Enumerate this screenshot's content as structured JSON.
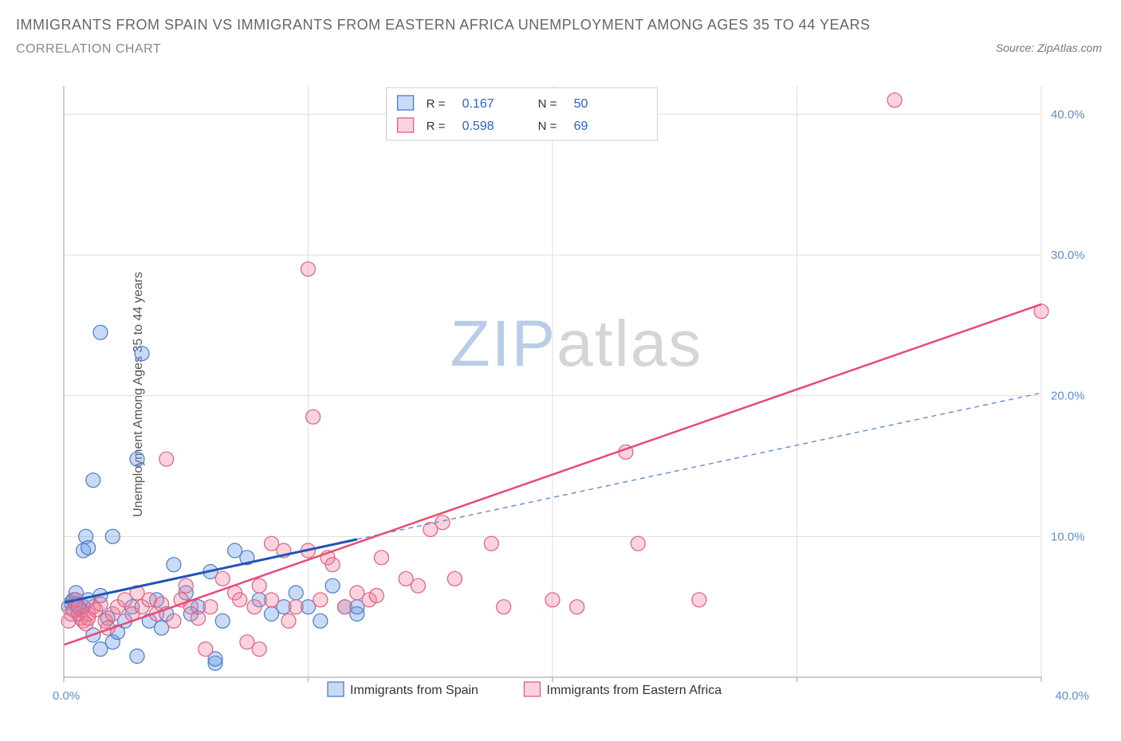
{
  "title": "IMMIGRANTS FROM SPAIN VS IMMIGRANTS FROM EASTERN AFRICA UNEMPLOYMENT AMONG AGES 35 TO 44 YEARS",
  "subtitle": "CORRELATION CHART",
  "source_label": "Source:",
  "source_value": "ZipAtlas.com",
  "y_axis_label": "Unemployment Among Ages 35 to 44 years",
  "watermark_a": "ZIP",
  "watermark_b": "atlas",
  "chart": {
    "type": "scatter",
    "background_color": "#ffffff",
    "grid_color": "#dddddd",
    "axis_color": "#bbbbbb",
    "tick_label_color": "#5a8fd8",
    "x_range": [
      0,
      40
    ],
    "y_range": [
      0,
      42
    ],
    "x_ticks": [
      0,
      10,
      20,
      30,
      40
    ],
    "x_tick_labels": [
      "0.0%",
      "",
      "",
      "",
      "40.0%"
    ],
    "y_ticks": [
      10,
      20,
      30,
      40
    ],
    "y_tick_labels": [
      "10.0%",
      "20.0%",
      "30.0%",
      "40.0%"
    ],
    "marker_radius": 9,
    "marker_stroke_width": 1.2,
    "series": [
      {
        "name": "Immigrants from Spain",
        "fill": "rgba(100,150,230,0.35)",
        "stroke": "#4a7bc8",
        "R": "0.167",
        "N": "50",
        "trend": {
          "x1": 0,
          "y1": 5.3,
          "x2": 12,
          "y2": 9.8,
          "color": "#1f55b8",
          "width": 3,
          "dash": "none"
        },
        "trend_ext": {
          "x1": 12,
          "y1": 9.8,
          "x2": 40,
          "y2": 20.2,
          "color": "#6d92d4",
          "width": 1.5,
          "dash": "6,5"
        },
        "points": [
          [
            0.2,
            5.0
          ],
          [
            0.3,
            5.3
          ],
          [
            0.4,
            5.5
          ],
          [
            0.5,
            6.0
          ],
          [
            0.5,
            5.2
          ],
          [
            0.6,
            4.5
          ],
          [
            0.7,
            4.8
          ],
          [
            0.8,
            5.0
          ],
          [
            0.8,
            9.0
          ],
          [
            0.9,
            10.0
          ],
          [
            1.0,
            9.2
          ],
          [
            1.0,
            5.5
          ],
          [
            1.2,
            14.0
          ],
          [
            1.2,
            3.0
          ],
          [
            1.5,
            24.5
          ],
          [
            1.5,
            5.8
          ],
          [
            1.5,
            2.0
          ],
          [
            1.8,
            4.2
          ],
          [
            2.0,
            2.5
          ],
          [
            2.0,
            10.0
          ],
          [
            2.2,
            3.2
          ],
          [
            2.5,
            4.0
          ],
          [
            2.8,
            5.0
          ],
          [
            3.0,
            15.5
          ],
          [
            3.0,
            1.5
          ],
          [
            3.2,
            23.0
          ],
          [
            3.5,
            4.0
          ],
          [
            3.8,
            5.5
          ],
          [
            4.0,
            3.5
          ],
          [
            4.2,
            4.5
          ],
          [
            4.5,
            8.0
          ],
          [
            5.0,
            6.0
          ],
          [
            5.2,
            4.5
          ],
          [
            5.5,
            5.0
          ],
          [
            6.0,
            7.5
          ],
          [
            6.2,
            1.0
          ],
          [
            6.2,
            1.3
          ],
          [
            6.5,
            4.0
          ],
          [
            7.0,
            9.0
          ],
          [
            7.5,
            8.5
          ],
          [
            8.0,
            5.5
          ],
          [
            8.5,
            4.5
          ],
          [
            9.0,
            5.0
          ],
          [
            9.5,
            6.0
          ],
          [
            10.0,
            5.0
          ],
          [
            10.5,
            4.0
          ],
          [
            11.0,
            6.5
          ],
          [
            11.5,
            5.0
          ],
          [
            12.0,
            4.5
          ],
          [
            12.0,
            5.0
          ]
        ]
      },
      {
        "name": "Immigrants from Eastern Africa",
        "fill": "rgba(240,130,160,0.35)",
        "stroke": "#e0607f",
        "R": "0.598",
        "N": "69",
        "trend": {
          "x1": 0,
          "y1": 2.3,
          "x2": 40,
          "y2": 26.5,
          "color": "#e84a73",
          "width": 2.5,
          "dash": "none"
        },
        "points": [
          [
            0.2,
            4.0
          ],
          [
            0.3,
            4.5
          ],
          [
            0.4,
            4.8
          ],
          [
            0.5,
            5.5
          ],
          [
            0.6,
            5.0
          ],
          [
            0.7,
            4.2
          ],
          [
            0.8,
            4.0
          ],
          [
            0.9,
            3.8
          ],
          [
            1.0,
            4.5
          ],
          [
            1.0,
            4.2
          ],
          [
            1.2,
            5.0
          ],
          [
            1.3,
            4.8
          ],
          [
            1.5,
            5.2
          ],
          [
            1.7,
            4.0
          ],
          [
            1.8,
            3.5
          ],
          [
            2.0,
            4.5
          ],
          [
            2.2,
            5.0
          ],
          [
            2.5,
            5.5
          ],
          [
            2.8,
            4.5
          ],
          [
            3.0,
            6.0
          ],
          [
            3.2,
            5.0
          ],
          [
            3.5,
            5.5
          ],
          [
            3.8,
            4.5
          ],
          [
            4.0,
            5.2
          ],
          [
            4.2,
            15.5
          ],
          [
            4.5,
            4.0
          ],
          [
            4.8,
            5.5
          ],
          [
            5.0,
            6.5
          ],
          [
            5.2,
            5.0
          ],
          [
            5.5,
            4.2
          ],
          [
            5.8,
            2.0
          ],
          [
            6.0,
            5.0
          ],
          [
            6.5,
            7.0
          ],
          [
            7.0,
            6.0
          ],
          [
            7.2,
            5.5
          ],
          [
            7.5,
            2.5
          ],
          [
            7.8,
            5.0
          ],
          [
            8.0,
            6.5
          ],
          [
            8.0,
            2.0
          ],
          [
            8.5,
            9.5
          ],
          [
            8.5,
            5.5
          ],
          [
            9.0,
            9.0
          ],
          [
            9.2,
            4.0
          ],
          [
            9.5,
            5.0
          ],
          [
            10.0,
            29.0
          ],
          [
            10.0,
            9.0
          ],
          [
            10.2,
            18.5
          ],
          [
            10.5,
            5.5
          ],
          [
            10.8,
            8.5
          ],
          [
            11.0,
            8.0
          ],
          [
            11.5,
            5.0
          ],
          [
            12.0,
            6.0
          ],
          [
            12.5,
            5.5
          ],
          [
            13.0,
            8.5
          ],
          [
            14.0,
            7.0
          ],
          [
            14.5,
            6.5
          ],
          [
            15.0,
            10.5
          ],
          [
            15.5,
            11.0
          ],
          [
            16.0,
            7.0
          ],
          [
            17.5,
            9.5
          ],
          [
            18.0,
            5.0
          ],
          [
            20.0,
            5.5
          ],
          [
            21.0,
            5.0
          ],
          [
            23.0,
            16.0
          ],
          [
            23.5,
            9.5
          ],
          [
            26.0,
            5.5
          ],
          [
            34.0,
            41.0
          ],
          [
            40.0,
            26.0
          ],
          [
            12.8,
            5.8
          ]
        ]
      }
    ],
    "stats_legend": {
      "box_stroke": "#cccccc",
      "box_fill": "#ffffff",
      "value_color": "#2962d9",
      "label_color": "#333333",
      "R_label": "R =",
      "N_label": "N ="
    },
    "bottom_legend": {
      "label_color": "#333333"
    }
  }
}
